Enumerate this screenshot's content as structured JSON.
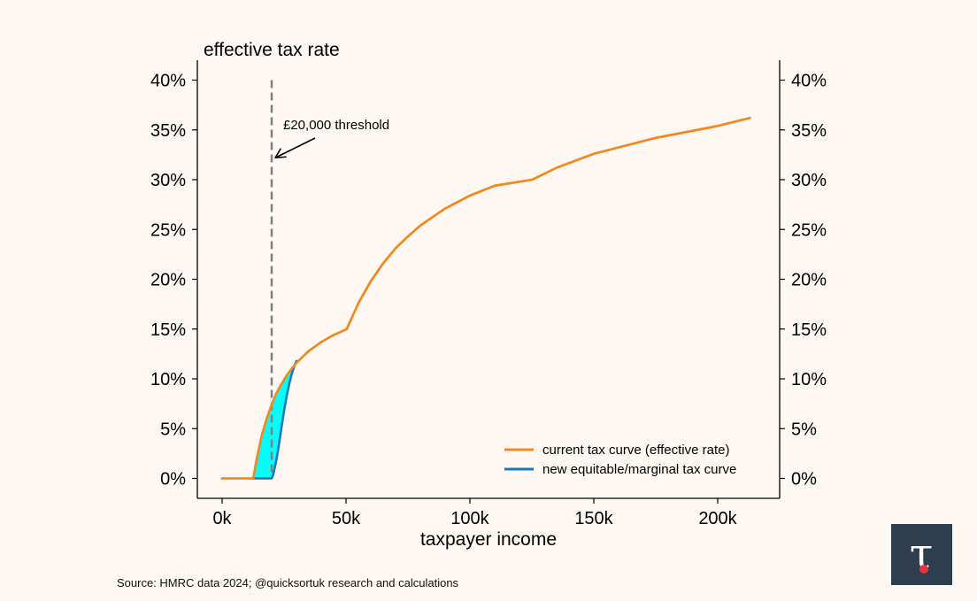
{
  "chart_data": {
    "type": "line",
    "title": "",
    "ylabel": "effective tax rate",
    "xlabel": "taxpayer income",
    "xlim": [
      -10000,
      225000
    ],
    "ylim": [
      -2,
      42
    ],
    "x_ticks": [
      0,
      50000,
      100000,
      150000,
      200000
    ],
    "x_tick_labels": [
      "0k",
      "50k",
      "100k",
      "150k",
      "200k"
    ],
    "y_ticks": [
      0,
      5,
      10,
      15,
      20,
      25,
      30,
      35,
      40
    ],
    "y_tick_labels": [
      "0%",
      "5%",
      "10%",
      "15%",
      "20%",
      "25%",
      "30%",
      "35%",
      "40%"
    ],
    "y_axis_sides": "both",
    "grid": false,
    "legend_position": "bottom-right",
    "series": [
      {
        "name": "current tax curve (effective rate)",
        "color": "#f28a1f",
        "x": [
          0,
          12570,
          14000,
          16000,
          18000,
          20000,
          22000,
          24000,
          26000,
          28000,
          30000,
          32000,
          35000,
          40000,
          45000,
          50270,
          55000,
          60000,
          65000,
          70000,
          75000,
          80000,
          90000,
          100000,
          110000,
          125140,
          135000,
          150000,
          175000,
          200000,
          213000
        ],
        "values": [
          0,
          0,
          2.0,
          4.3,
          6.0,
          7.4,
          8.6,
          9.5,
          10.3,
          11.0,
          11.6,
          12.1,
          12.8,
          13.7,
          14.4,
          15.0,
          17.6,
          19.8,
          21.6,
          23.1,
          24.3,
          25.4,
          27.1,
          28.4,
          29.4,
          30.0,
          31.2,
          32.6,
          34.2,
          35.4,
          36.2
        ]
      },
      {
        "name": "new equitable/marginal tax curve",
        "color": "#1f77b4",
        "x": [
          12570,
          20000,
          20500,
          21000,
          22000,
          23000,
          24000,
          25000,
          26000,
          27000,
          28000,
          29000,
          30000
        ],
        "values": [
          0,
          0,
          0.3,
          0.8,
          2.0,
          3.5,
          5.2,
          6.8,
          8.2,
          9.4,
          10.4,
          11.2,
          11.8
        ]
      }
    ],
    "shaded_region": {
      "between": [
        "current tax curve (effective rate)",
        "new equitable/marginal tax curve"
      ],
      "x_range": [
        12570,
        30000
      ],
      "color": "#00ffff"
    },
    "threshold_line": {
      "x": 20000,
      "color": "#808080",
      "style": "dashed"
    },
    "annotations": [
      {
        "text": "£20,000 threshold",
        "arrow_to": {
          "x": 20000,
          "y": 32.2
        }
      }
    ]
  },
  "footer": {
    "source": "Source: HMRC data 2024; @quicksortuk research and calculations"
  },
  "logo": {
    "glyph": "τ",
    "background": "#2d3e4f",
    "glyph_color": "#ffffff",
    "accent_color": "#e8333c"
  }
}
